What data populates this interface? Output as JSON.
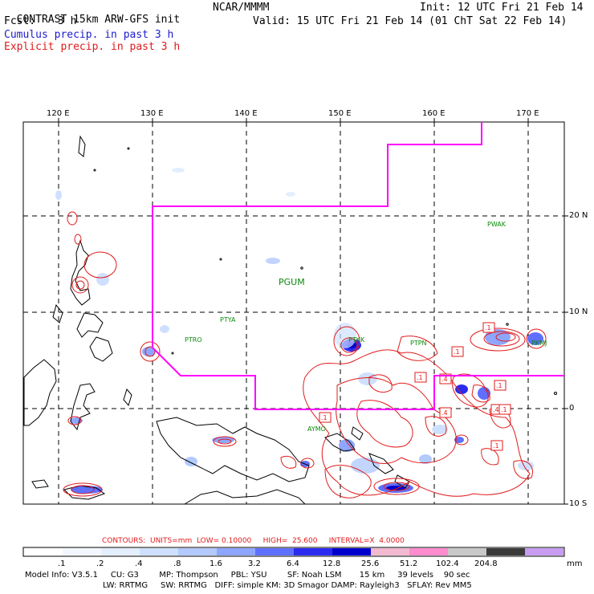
{
  "header": {
    "model_title": "CONTRAST 15km ARW-GFS init",
    "org": "NCAR/MMMM",
    "init_line": "Init: 12 UTC Fri 21 Feb 14",
    "fcst_label": "Fcst:",
    "fcst_value": "3 h",
    "valid_line": "Valid: 15 UTC Fri 21 Feb 14 (01 ChT Sat 22 Feb 14)",
    "cumulus_label": "Cumulus precip. in past 3 h",
    "explicit_label": "Explicit precip. in past 3 h"
  },
  "map": {
    "lon_labels": [
      "120 E",
      "130 E",
      "140 E",
      "150 E",
      "160 E",
      "170 E"
    ],
    "lat_labels": [
      "20 N",
      "10 N",
      "0",
      "10 S"
    ],
    "stations": [
      "PWAK",
      "PGUM",
      "PTYA",
      "PTRO",
      "PTKK",
      "PTPN",
      "PKMJ",
      "AYMO"
    ],
    "contour_labels": [
      ".1",
      ".4",
      ".4",
      ".1",
      ".1",
      ".4",
      ".1",
      ".1",
      ".1",
      ".1"
    ]
  },
  "colorbar": {
    "values": [
      ".1",
      ".2",
      ".4",
      ".8",
      "1.6",
      "3.2",
      "6.4",
      "12.8",
      "25.6",
      "51.2",
      "102.4",
      "204.8"
    ],
    "unit": "mm",
    "colors": [
      "#ffffff",
      "#f2f7ff",
      "#e3eeff",
      "#cfe0ff",
      "#b3caff",
      "#8ea6ff",
      "#5f6fff",
      "#2b2bf0",
      "#0000cd",
      "#f2b9d0",
      "#ff8ccf",
      "#c8c8c8",
      "#3a3a3a",
      "#c89cf0"
    ]
  },
  "contour_info": {
    "text": "CONTOURS:  UNITS=mm  LOW= 0.10000     HIGH=  25.600     INTERVAL=X  4.0000"
  },
  "model_info": {
    "line1": "Model Info: V3.5.1     CU: G3        MP: Thompson     PBL: YSU        SF: Noah LSM       15 km     39 levels    90 sec",
    "line2": "LW: RRTMG     SW: RRTMG   DIFF: simple KM: 3D Smagor DAMP: Rayleigh3   SFLAY: Rev MM5"
  }
}
